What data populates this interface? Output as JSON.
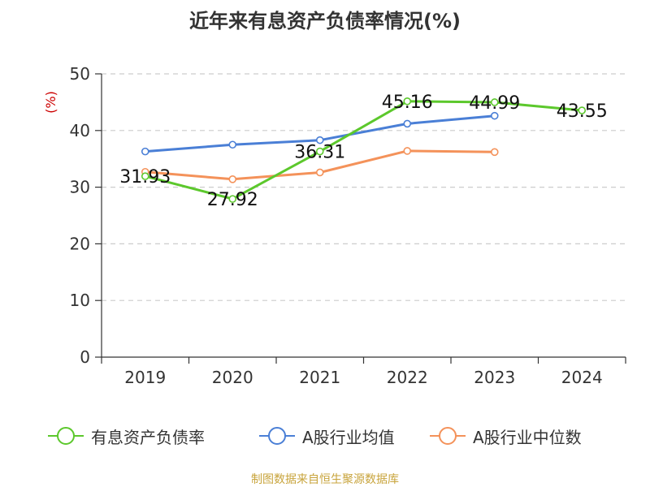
{
  "title": "近年来有息资产负债率情况(%)",
  "source": "制图数据来自恒生聚源数据库",
  "colors": {
    "axis": "#333333",
    "grid": "#cccccc",
    "ylabel": "#cc0000"
  },
  "chart_data": {
    "type": "line",
    "title": "近年来有息资产负债率情况(%)",
    "xlabel": "",
    "ylabel": "(%)",
    "categories": [
      "2019",
      "2020",
      "2021",
      "2022",
      "2023",
      "2024"
    ],
    "ylim": [
      0,
      50
    ],
    "yticks": [
      0,
      10,
      20,
      30,
      40,
      50
    ],
    "grid": true,
    "legend_position": "bottom",
    "series": [
      {
        "name": "有息资产负债率",
        "color": "#5cc82c",
        "values": [
          31.93,
          27.92,
          36.31,
          45.16,
          44.99,
          43.55
        ],
        "labels": [
          "31.93",
          "27.92",
          "36.31",
          "45.16",
          "44.99",
          "43.55"
        ]
      },
      {
        "name": "A股行业均值",
        "color": "#4a7fd6",
        "values": [
          36.3,
          37.5,
          38.3,
          41.2,
          42.6,
          null
        ]
      },
      {
        "name": "A股行业中位数",
        "color": "#f4925a",
        "values": [
          32.7,
          31.4,
          32.6,
          36.4,
          36.2,
          null
        ]
      }
    ]
  }
}
